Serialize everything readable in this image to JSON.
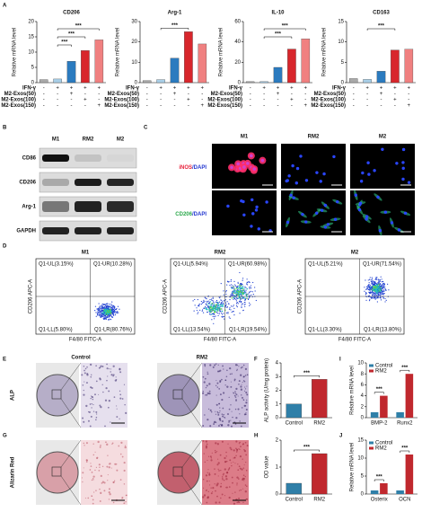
{
  "panel_labels": [
    "A",
    "B",
    "C",
    "D",
    "E",
    "F",
    "G",
    "H",
    "I",
    "J"
  ],
  "conditions": [
    {
      "label": "IFN-γ",
      "signs": [
        "-",
        "+",
        "+",
        "+",
        "+"
      ]
    },
    {
      "label": "M2-Exos(50)",
      "signs": [
        "-",
        "-",
        "+",
        "-",
        "-"
      ]
    },
    {
      "label": "M2-Exos(100)",
      "signs": [
        "-",
        "-",
        "-",
        "+",
        "-"
      ]
    },
    {
      "label": "M2-Exos(150)",
      "signs": [
        "-",
        "-",
        "-",
        "-",
        "+"
      ]
    }
  ],
  "chart_data": [
    {
      "type": "bar",
      "title": "CD206",
      "y_label": "Relative mRNA level",
      "values": [
        1,
        1.2,
        7,
        10.5,
        14
      ],
      "colors": [
        "#a9a9a9",
        "#a9cfe8",
        "#2b7bbf",
        "#d8262c",
        "#f08080"
      ],
      "ylim": [
        0,
        20
      ],
      "yticks": [
        0,
        5,
        10,
        15,
        20
      ],
      "annotations": [
        "***",
        "***",
        "***"
      ]
    },
    {
      "type": "bar",
      "title": "Arg-1",
      "y_label": "Relative mRNA level",
      "values": [
        1,
        1.5,
        12,
        25,
        19
      ],
      "colors": [
        "#a9a9a9",
        "#a9cfe8",
        "#2b7bbf",
        "#d8262c",
        "#f08080"
      ],
      "ylim": [
        0,
        30
      ],
      "yticks": [
        0,
        10,
        20,
        30
      ],
      "annotations": [
        "***"
      ]
    },
    {
      "type": "bar",
      "title": "IL-10",
      "y_label": "Relative mRNA level",
      "values": [
        1,
        1,
        15,
        33,
        43
      ],
      "colors": [
        "#a9a9a9",
        "#a9cfe8",
        "#2b7bbf",
        "#d8262c",
        "#f08080"
      ],
      "ylim": [
        0,
        60
      ],
      "yticks": [
        0,
        20,
        40,
        60
      ],
      "annotations": [
        "***",
        "***"
      ]
    },
    {
      "type": "bar",
      "title": "CD163",
      "y_label": "Relative mRNA level",
      "values": [
        1,
        0.8,
        2.8,
        8,
        8.2
      ],
      "colors": [
        "#a9a9a9",
        "#a9cfe8",
        "#2b7bbf",
        "#d8262c",
        "#f08080"
      ],
      "ylim": [
        0,
        15
      ],
      "yticks": [
        0,
        5,
        10,
        15
      ],
      "annotations": [
        "***"
      ]
    },
    {
      "type": "bar",
      "y_label": "ALP activity (U/mg protein)",
      "categories": [
        "Control",
        "RM2"
      ],
      "values": [
        1,
        2.8
      ],
      "colors": [
        "#2f7fa8",
        "#c0282e"
      ],
      "ylim": [
        0,
        4
      ],
      "yticks": [
        0,
        1,
        2,
        3,
        4
      ],
      "annotations": [
        "***"
      ]
    },
    {
      "type": "grouped_bar",
      "y_label": "Relative mRNA level",
      "categories": [
        "BMP-2",
        "Runx2"
      ],
      "series": [
        {
          "name": "Control",
          "color": "#2f7fa8",
          "values": [
            1,
            1
          ]
        },
        {
          "name": "RM2",
          "color": "#c0282e",
          "values": [
            4,
            8
          ]
        }
      ],
      "ylim": [
        0,
        10
      ],
      "yticks": [
        0,
        2,
        4,
        6,
        8,
        10
      ],
      "annotations": [
        "***",
        "***"
      ]
    },
    {
      "type": "bar",
      "y_label": "OD value",
      "categories": [
        "Control",
        "RM2"
      ],
      "values": [
        0.4,
        1.5
      ],
      "colors": [
        "#2f7fa8",
        "#c0282e"
      ],
      "ylim": [
        0,
        2
      ],
      "yticks": [
        0,
        1,
        2
      ],
      "annotations": [
        "***"
      ]
    },
    {
      "type": "grouped_bar",
      "y_label": "Relative mRNA level",
      "categories": [
        "Osterix",
        "OCN"
      ],
      "series": [
        {
          "name": "Control",
          "color": "#2f7fa8",
          "values": [
            1,
            1
          ]
        },
        {
          "name": "RM2",
          "color": "#c0282e",
          "values": [
            3,
            11
          ]
        }
      ],
      "ylim": [
        0,
        15
      ],
      "yticks": [
        0,
        5,
        10,
        15
      ],
      "annotations": [
        "***",
        "***"
      ]
    }
  ],
  "western_blot": {
    "columns": [
      "M1",
      "RM2",
      "M2"
    ],
    "rows": [
      "CD86",
      "CD206",
      "Arg-1",
      "GAPDH"
    ]
  },
  "immunofluorescence": {
    "columns": [
      "M1",
      "RM2",
      "M2"
    ],
    "rows": [
      {
        "marker": "iNOS",
        "stain": "/DAPI"
      },
      {
        "marker": "CD206",
        "stain": "/DAPI"
      }
    ]
  },
  "flow_cytometry": {
    "x_label": "F4/80 FITC-A",
    "y_label": "CD206 APC-A",
    "plots": [
      {
        "title": "M1",
        "quadrants": [
          "Q1-UL(3.15%)",
          "Q1-UR(10.28%)",
          "Q1-LL(5.80%)",
          "Q1-LR(80.76%)"
        ]
      },
      {
        "title": "RM2",
        "quadrants": [
          "Q1-UL(5.94%)",
          "Q1-UR(60.98%)",
          "Q1-LL(13.54%)",
          "Q1-LR(19.54%)"
        ]
      },
      {
        "title": "M2",
        "quadrants": [
          "Q1-UL(5.21%)",
          "Q1-UR(71.54%)",
          "Q1-LL(3.30%)",
          "Q1-LR(13.80%)"
        ]
      }
    ]
  },
  "staining": [
    {
      "label": "ALP",
      "columns": [
        "Control",
        "RM2"
      ]
    },
    {
      "label": "Alizarin Red",
      "columns": [
        "Control",
        "RM2"
      ]
    }
  ]
}
